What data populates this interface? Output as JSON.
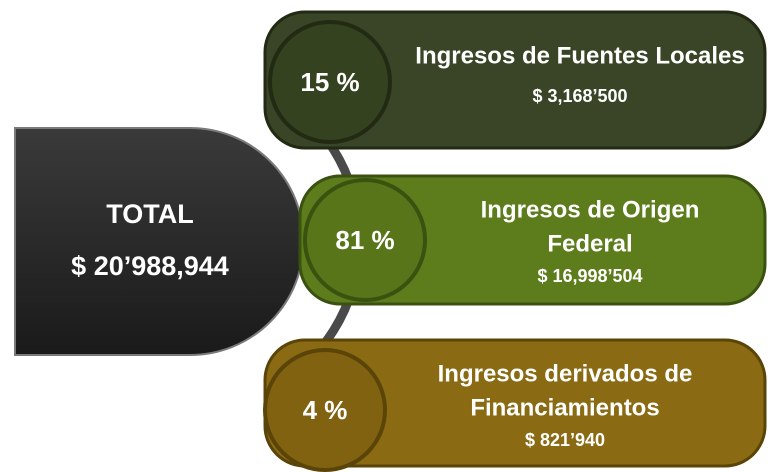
{
  "total": {
    "label": "TOTAL",
    "amount": "$ 20’988,944"
  },
  "items": [
    {
      "percent": "15 %",
      "title_lines": [
        "Ingresos de Fuentes Locales"
      ],
      "amount": "$ 3,168’500"
    },
    {
      "percent": "81 %",
      "title_lines": [
        "Ingresos de Origen",
        "Federal"
      ],
      "amount": "$ 16,998’504"
    },
    {
      "percent": "4 %",
      "title_lines": [
        "Ingresos derivados de",
        "Financiamientos"
      ],
      "amount": "$ 821’940"
    }
  ]
}
